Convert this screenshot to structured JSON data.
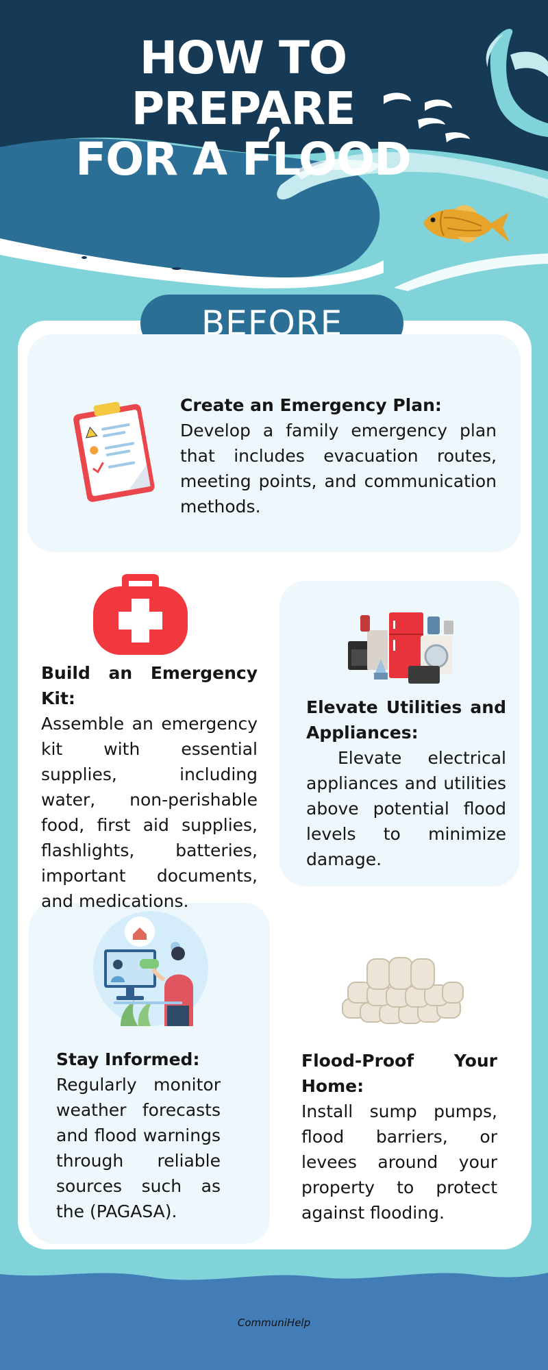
{
  "header": {
    "title_line1": "HOW TO PREPARE",
    "title_line2": "FOR A FLOOD"
  },
  "section": {
    "label": "BEFORE"
  },
  "tips": [
    {
      "title": "Create an Emergency Plan:",
      "body": "Develop a family emergency plan that includes evacuation routes, meeting points, and communication methods.",
      "icon": "clipboard-icon"
    },
    {
      "title": "Build an Emergency Kit:",
      "body": "Assemble an emergency kit with essential supplies, including water, non-perishable food, first aid supplies, flashlights, batteries, important documents, and medications.",
      "icon": "first-aid-kit-icon"
    },
    {
      "title": "Elevate Utilities and Appliances:",
      "body": "Elevate electrical appliances and utilities above potential flood levels to minimize damage.",
      "icon": "appliances-icon"
    },
    {
      "title": "Stay Informed:",
      "body": "Regularly monitor weather forecasts and flood warnings through reliable sources such as the (PAGASA).",
      "icon": "monitor-person-icon"
    },
    {
      "title": "Flood-Proof Your Home:",
      "body": "Install sump pumps, flood barriers, or levees around your property to protect against flooding.",
      "icon": "sandbags-icon"
    }
  ],
  "footer": {
    "brand": "CommuniHelp"
  },
  "colors": {
    "navy": "#163a56",
    "wave_blue": "#2b6f96",
    "teal": "#7fd3d9",
    "panel": "#eef7fc",
    "footer_blue": "#437db8",
    "first_aid_red": "#f1383f"
  }
}
